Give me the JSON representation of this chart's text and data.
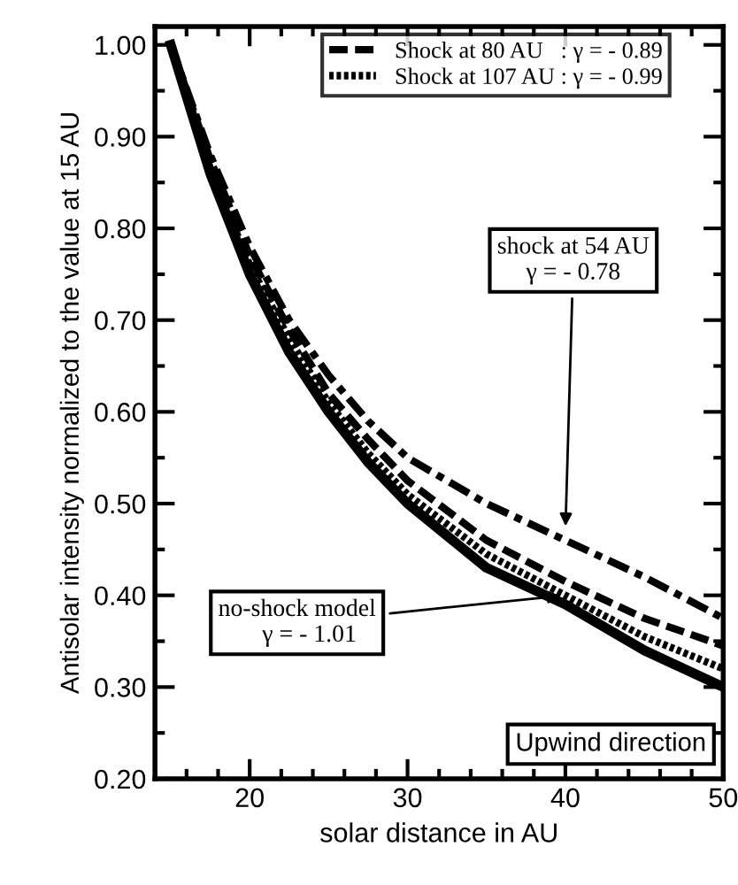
{
  "chart_data": {
    "type": "line",
    "xlabel": "solar distance in AU",
    "ylabel": "Antisolar intensity normalized to the value at 15 AU",
    "x": [
      15,
      17.5,
      20,
      22.5,
      25,
      27.5,
      30,
      35,
      40,
      45,
      50
    ],
    "series": [
      {
        "name": "Shock at 80 AU   : γ = - 0.89",
        "color": "#000000",
        "line_style": "dashed",
        "values": [
          1.0,
          0.875,
          0.77,
          0.69,
          0.62,
          0.57,
          0.525,
          0.46,
          0.415,
          0.375,
          0.345
        ]
      },
      {
        "name": "Shock at 107 AU : γ = - 0.99",
        "color": "#000000",
        "line_style": "dotted",
        "values": [
          1.0,
          0.865,
          0.76,
          0.68,
          0.61,
          0.555,
          0.51,
          0.445,
          0.4,
          0.355,
          0.32
        ]
      },
      {
        "color": "#000000",
        "line_style": "dashdot",
        "values": [
          1.0,
          0.88,
          0.78,
          0.7,
          0.64,
          0.59,
          0.55,
          0.5,
          0.46,
          0.42,
          0.375
        ]
      },
      {
        "color": "#000000",
        "line_style": "solid",
        "values": [
          1.0,
          0.86,
          0.75,
          0.665,
          0.6,
          0.545,
          0.5,
          0.43,
          0.39,
          0.34,
          0.3
        ]
      }
    ],
    "annotations": [
      {
        "text": "shock at 54 AU\nγ = - 0.78",
        "x": 40,
        "y": 0.47
      },
      {
        "text": "no-shock model\n    γ = - 1.01",
        "x": 40,
        "y": 0.4
      },
      "Upwind direction"
    ],
    "xlim": [
      14,
      50
    ],
    "ylim": [
      0.2,
      1.02
    ],
    "xticks": [
      20,
      30,
      40,
      50
    ],
    "yticks": [
      {
        "value": 0.2,
        "label": "0.20"
      },
      {
        "value": 0.3,
        "label": "0.30"
      },
      {
        "value": 0.4,
        "label": "0.40"
      },
      {
        "value": 0.5,
        "label": "0.50"
      },
      {
        "value": 0.6,
        "label": "0.60"
      },
      {
        "value": 0.7,
        "label": "0.70"
      },
      {
        "value": 0.8,
        "label": "0.80"
      },
      {
        "value": 0.9,
        "label": "0.90"
      },
      {
        "value": 1.0,
        "label": "1.00"
      }
    ],
    "legend": "top",
    "grid": false
  }
}
